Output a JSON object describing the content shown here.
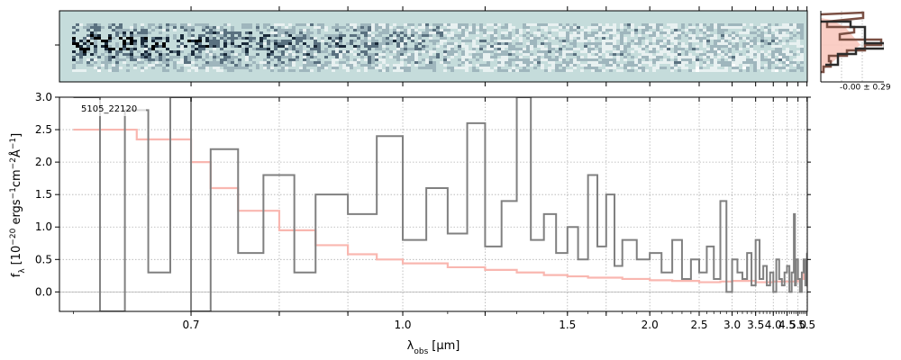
{
  "chart_data": [
    {
      "type": "heatmap",
      "panel": "2d-spectrum",
      "description_colors": {
        "background": "#c5dcdb",
        "dark": "#0b1a2a"
      },
      "x_range": [
        0.59,
        5.52
      ]
    },
    {
      "type": "line",
      "panel": "1d-spectrum",
      "label": "5105_22120",
      "xlabel_base": "λ",
      "xlabel_sub": "obs",
      "xlabel_unit": "[μm]",
      "ylabel_base": "f",
      "ylabel_sub": "λ",
      "ylabel_unit": "[10",
      "ylabel_exp1": "−20",
      "ylabel_mid1": " ergs",
      "ylabel_exp2": "−1",
      "ylabel_mid2": "cm",
      "ylabel_exp3": "−2",
      "ylabel_mid3": "Å",
      "ylabel_exp4": "−1",
      "ylabel_end": "]",
      "xlim": [
        0.59,
        5.52
      ],
      "ylim": [
        -0.3,
        3.0
      ],
      "x_scale": "reciprocal",
      "xticks": [
        0.7,
        0.8,
        0.9,
        1.0,
        1.2,
        1.5,
        1.7,
        2.0,
        2.5,
        3.0,
        3.5,
        4.0,
        4.5,
        5.0,
        5.5
      ],
      "xtick_labels": [
        "0.7",
        "",
        "",
        "1.0",
        "",
        "1.5",
        "",
        "2.0",
        "2.5",
        "3.0",
        "3.5",
        "4.0",
        "4.5",
        "5.0",
        "5.5"
      ],
      "yticks": [
        0.0,
        0.5,
        1.0,
        1.5,
        2.0,
        2.5,
        3.0
      ],
      "ytick_labels": [
        "0.0",
        "0.5",
        "1.0",
        "1.5",
        "2.0",
        "2.5",
        "3.0"
      ],
      "grid": true,
      "series": [
        {
          "role": "model",
          "color": "#f9b7b0",
          "x": [
            0.6,
            0.65,
            0.7,
            0.72,
            0.75,
            0.8,
            0.85,
            0.9,
            0.95,
            1.0,
            1.1,
            1.2,
            1.3,
            1.4,
            1.5,
            1.6,
            1.7,
            1.8,
            2.0,
            2.2,
            2.5,
            2.8,
            3.0,
            3.5,
            4.0,
            4.5,
            5.0,
            5.3,
            5.5
          ],
          "y": [
            2.5,
            2.35,
            2.0,
            1.6,
            1.25,
            0.95,
            0.72,
            0.58,
            0.5,
            0.44,
            0.38,
            0.34,
            0.3,
            0.26,
            0.24,
            0.22,
            0.22,
            0.2,
            0.18,
            0.17,
            0.15,
            0.16,
            0.17,
            0.15,
            0.16,
            0.16,
            0.2,
            0.3,
            0.5
          ]
        },
        {
          "role": "data",
          "color": "#808080",
          "x": [
            0.6,
            0.62,
            0.64,
            0.66,
            0.68,
            0.7,
            0.72,
            0.75,
            0.78,
            0.82,
            0.85,
            0.9,
            0.95,
            1.0,
            1.05,
            1.1,
            1.15,
            1.2,
            1.25,
            1.3,
            1.35,
            1.4,
            1.45,
            1.5,
            1.55,
            1.6,
            1.65,
            1.7,
            1.75,
            1.8,
            1.9,
            2.0,
            2.1,
            2.2,
            2.3,
            2.4,
            2.5,
            2.6,
            2.7,
            2.8,
            2.9,
            3.0,
            3.1,
            3.2,
            3.3,
            3.4,
            3.5,
            3.6,
            3.7,
            3.8,
            3.9,
            4.0,
            4.1,
            4.2,
            4.3,
            4.4,
            4.5,
            4.6,
            4.7,
            4.8,
            4.85,
            4.9,
            5.0,
            5.1,
            5.2,
            5.3,
            5.4,
            5.5
          ],
          "y": [
            3.0,
            -0.3,
            2.8,
            0.3,
            3.0,
            -0.3,
            2.2,
            0.6,
            1.8,
            0.3,
            1.5,
            1.2,
            2.4,
            0.8,
            1.6,
            0.9,
            2.6,
            0.7,
            1.4,
            3.0,
            0.8,
            1.2,
            0.6,
            1.0,
            0.5,
            1.8,
            0.7,
            1.5,
            0.4,
            0.8,
            0.5,
            0.6,
            0.3,
            0.8,
            0.2,
            0.5,
            0.3,
            0.7,
            0.2,
            1.4,
            0.0,
            0.5,
            0.3,
            0.2,
            0.6,
            0.1,
            0.8,
            0.2,
            0.4,
            0.1,
            0.3,
            0.0,
            0.5,
            0.2,
            0.1,
            0.3,
            0.4,
            0.0,
            0.3,
            1.2,
            0.1,
            0.5,
            0.2,
            0.0,
            0.3,
            0.5,
            0.1,
            0.6
          ]
        }
      ]
    },
    {
      "type": "histogram",
      "panel": "residual-histogram",
      "label": "-0.00 ± 0.29"
    }
  ]
}
